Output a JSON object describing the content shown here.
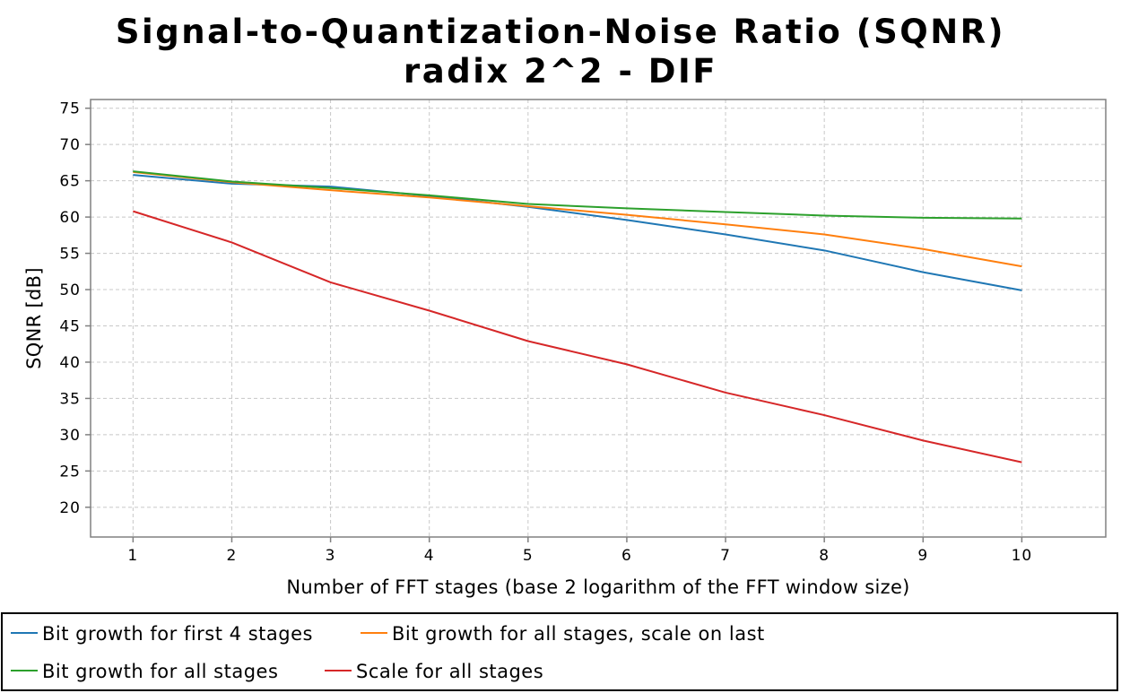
{
  "chart_data": {
    "type": "line",
    "title": "Signal-to-Quantization-Noise Ratio (SQNR)",
    "subtitle": "radix 2^2 - DIF",
    "xlabel": "Number of FFT stages (base 2 logarithm of the FFT window size)",
    "ylabel": "SQNR [dB]",
    "x": [
      1,
      2,
      3,
      4,
      5,
      6,
      7,
      8,
      9,
      10
    ],
    "x_ticks": [
      "1",
      "2",
      "3",
      "4",
      "5",
      "6",
      "7",
      "8",
      "9",
      "10"
    ],
    "y_ticks": [
      "20",
      "25",
      "30",
      "35",
      "40",
      "45",
      "50",
      "55",
      "60",
      "65",
      "70",
      "75"
    ],
    "xlim": [
      0.57,
      10.85
    ],
    "ylim": [
      15.9,
      76.2
    ],
    "grid": true,
    "legend_position": "bottom",
    "series": [
      {
        "name": "Bit growth for first 4 stages",
        "color": "#1f77b4",
        "values": [
          65.8,
          64.6,
          64.2,
          62.9,
          61.4,
          59.6,
          57.6,
          55.4,
          52.4,
          49.9
        ]
      },
      {
        "name": "Bit growth for all stages, scale on last",
        "color": "#ff7f0e",
        "values": [
          66.2,
          64.8,
          63.7,
          62.7,
          61.5,
          60.3,
          59.0,
          57.6,
          55.6,
          53.2
        ]
      },
      {
        "name": "Bit growth for all stages",
        "color": "#2ca02c",
        "values": [
          66.3,
          64.9,
          64.0,
          63.0,
          61.8,
          61.2,
          60.7,
          60.2,
          59.9,
          59.8
        ]
      },
      {
        "name": "Scale for all stages",
        "color": "#d62728",
        "values": [
          60.8,
          56.5,
          51.0,
          47.1,
          42.9,
          39.7,
          35.8,
          32.7,
          29.2,
          26.2
        ]
      }
    ]
  }
}
